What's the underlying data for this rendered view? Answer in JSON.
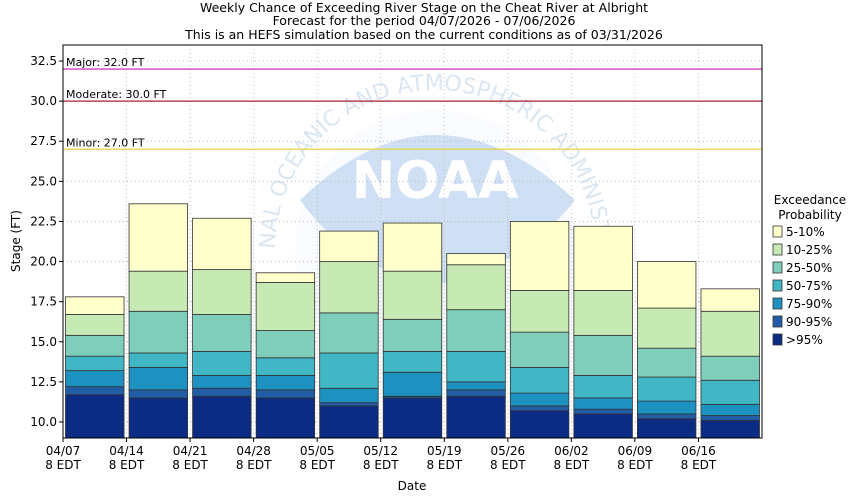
{
  "chart_data": {
    "type": "bar",
    "title_lines": [
      "Weekly Chance of Exceeding River Stage on the Cheat River at Albright",
      "Forecast for the period 04/07/2026 - 07/06/2026",
      "This is an HEFS simulation based on the current conditions as of 03/31/2026"
    ],
    "xlabel": "Date",
    "ylabel": "Stage (FT)",
    "ylim": [
      9,
      33.5
    ],
    "yticks": [
      "10.0",
      "12.5",
      "15.0",
      "17.5",
      "20.0",
      "22.5",
      "25.0",
      "27.5",
      "30.0",
      "32.5"
    ],
    "ytick_values": [
      10,
      12.5,
      15,
      17.5,
      20,
      22.5,
      25,
      27.5,
      30,
      32.5
    ],
    "xticks": [
      {
        "date": "04/07",
        "tz": "8 EDT"
      },
      {
        "date": "04/14",
        "tz": "8 EDT"
      },
      {
        "date": "04/21",
        "tz": "8 EDT"
      },
      {
        "date": "04/28",
        "tz": "8 EDT"
      },
      {
        "date": "05/05",
        "tz": "8 EDT"
      },
      {
        "date": "05/12",
        "tz": "8 EDT"
      },
      {
        "date": "05/19",
        "tz": "8 EDT"
      },
      {
        "date": "05/26",
        "tz": "8 EDT"
      },
      {
        "date": "06/02",
        "tz": "8 EDT"
      },
      {
        "date": "06/09",
        "tz": "8 EDT"
      },
      {
        "date": "06/16",
        "tz": "8 EDT"
      }
    ],
    "thresholds": [
      {
        "label": "Major: 32.0 FT",
        "value": 32.0,
        "color": "#cc44cc"
      },
      {
        "label": "Moderate: 30.0 FT",
        "value": 30.0,
        "color": "#aa2233"
      },
      {
        "label": "Minor: 27.0 FT",
        "value": 27.0,
        "color": "#e6d24a"
      }
    ],
    "legend_title_lines": [
      "Exceedance",
      "Probability"
    ],
    "legend_placement": "right",
    "bands": [
      {
        "name": "5-10%",
        "color": "#ffffcc"
      },
      {
        "name": "10-25%",
        "color": "#c7e9b4"
      },
      {
        "name": "25-50%",
        "color": "#7fcdbb"
      },
      {
        "name": "50-75%",
        "color": "#41b6c4"
      },
      {
        "name": "75-90%",
        "color": "#1d91c0"
      },
      {
        "name": "90-95%",
        "color": "#225ea8"
      },
      {
        "name": ">95%",
        "color": "#0c2c84"
      }
    ],
    "weeks": [
      {
        "bottom": 9.0,
        "levels": [
          11.7,
          12.2,
          13.2,
          14.1,
          15.4,
          16.7,
          17.8
        ]
      },
      {
        "bottom": 9.0,
        "levels": [
          11.5,
          12.0,
          13.4,
          14.3,
          16.9,
          19.4,
          23.6
        ]
      },
      {
        "bottom": 9.0,
        "levels": [
          11.6,
          12.1,
          12.9,
          14.4,
          16.7,
          19.5,
          22.7
        ]
      },
      {
        "bottom": 9.0,
        "levels": [
          11.5,
          12.0,
          12.9,
          14.0,
          15.7,
          18.7,
          19.3
        ]
      },
      {
        "bottom": 9.0,
        "levels": [
          11.0,
          11.2,
          12.1,
          14.3,
          16.8,
          20.0,
          21.9
        ]
      },
      {
        "bottom": 9.0,
        "levels": [
          11.5,
          11.6,
          13.1,
          14.4,
          16.4,
          19.4,
          22.4
        ]
      },
      {
        "bottom": 9.0,
        "levels": [
          11.6,
          12.0,
          12.5,
          14.4,
          17.0,
          19.8,
          20.5
        ]
      },
      {
        "bottom": 9.0,
        "levels": [
          10.7,
          11.0,
          11.8,
          13.4,
          15.6,
          18.2,
          22.5
        ]
      },
      {
        "bottom": 9.0,
        "levels": [
          10.5,
          10.8,
          11.5,
          12.9,
          15.4,
          18.2,
          22.2
        ]
      },
      {
        "bottom": 9.0,
        "levels": [
          10.2,
          10.5,
          11.3,
          12.8,
          14.6,
          17.1,
          20.0
        ]
      },
      {
        "bottom": 9.0,
        "levels": [
          10.1,
          10.4,
          11.1,
          12.6,
          14.1,
          16.9,
          18.3
        ]
      }
    ],
    "grid": true
  },
  "watermark": {
    "logo_text": "NOAA",
    "ring_text": "NATIONAL OCEANIC AND ATMOSPHERIC ADMINISTRATION"
  }
}
